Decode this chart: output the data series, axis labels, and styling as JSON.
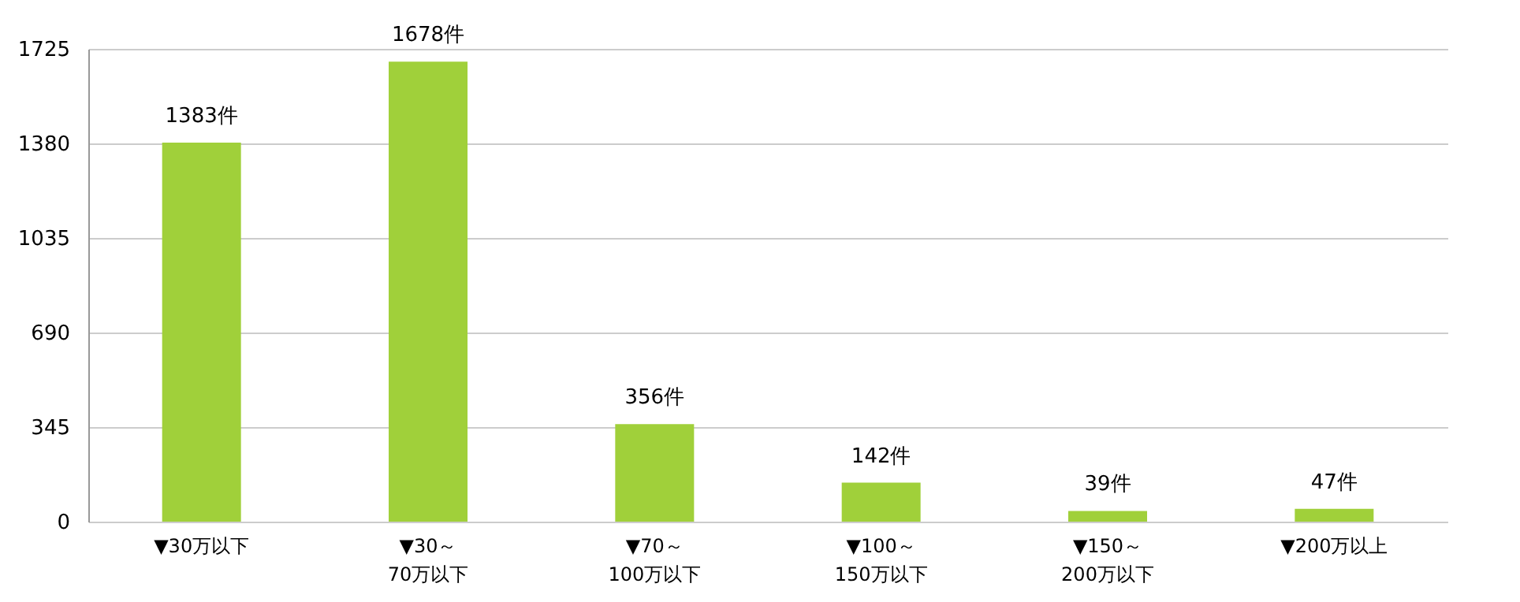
{
  "chart_data": {
    "type": "bar",
    "categories": [
      "▼30万以下",
      "▼30～\n70万以下",
      "▼70～\n100万以下",
      "▼100～\n150万以下",
      "▼150～\n200万以下",
      "▼200万以上"
    ],
    "values": [
      1383,
      1678,
      356,
      142,
      39,
      47
    ],
    "value_labels": [
      "1383件",
      "1678件",
      "356件",
      "142件",
      "39件",
      "47件"
    ],
    "color": "#a0d03a",
    "ylim": [
      0,
      1725
    ],
    "yticks": [
      0,
      345,
      690,
      1035,
      1380,
      1725
    ],
    "grid": "y"
  }
}
